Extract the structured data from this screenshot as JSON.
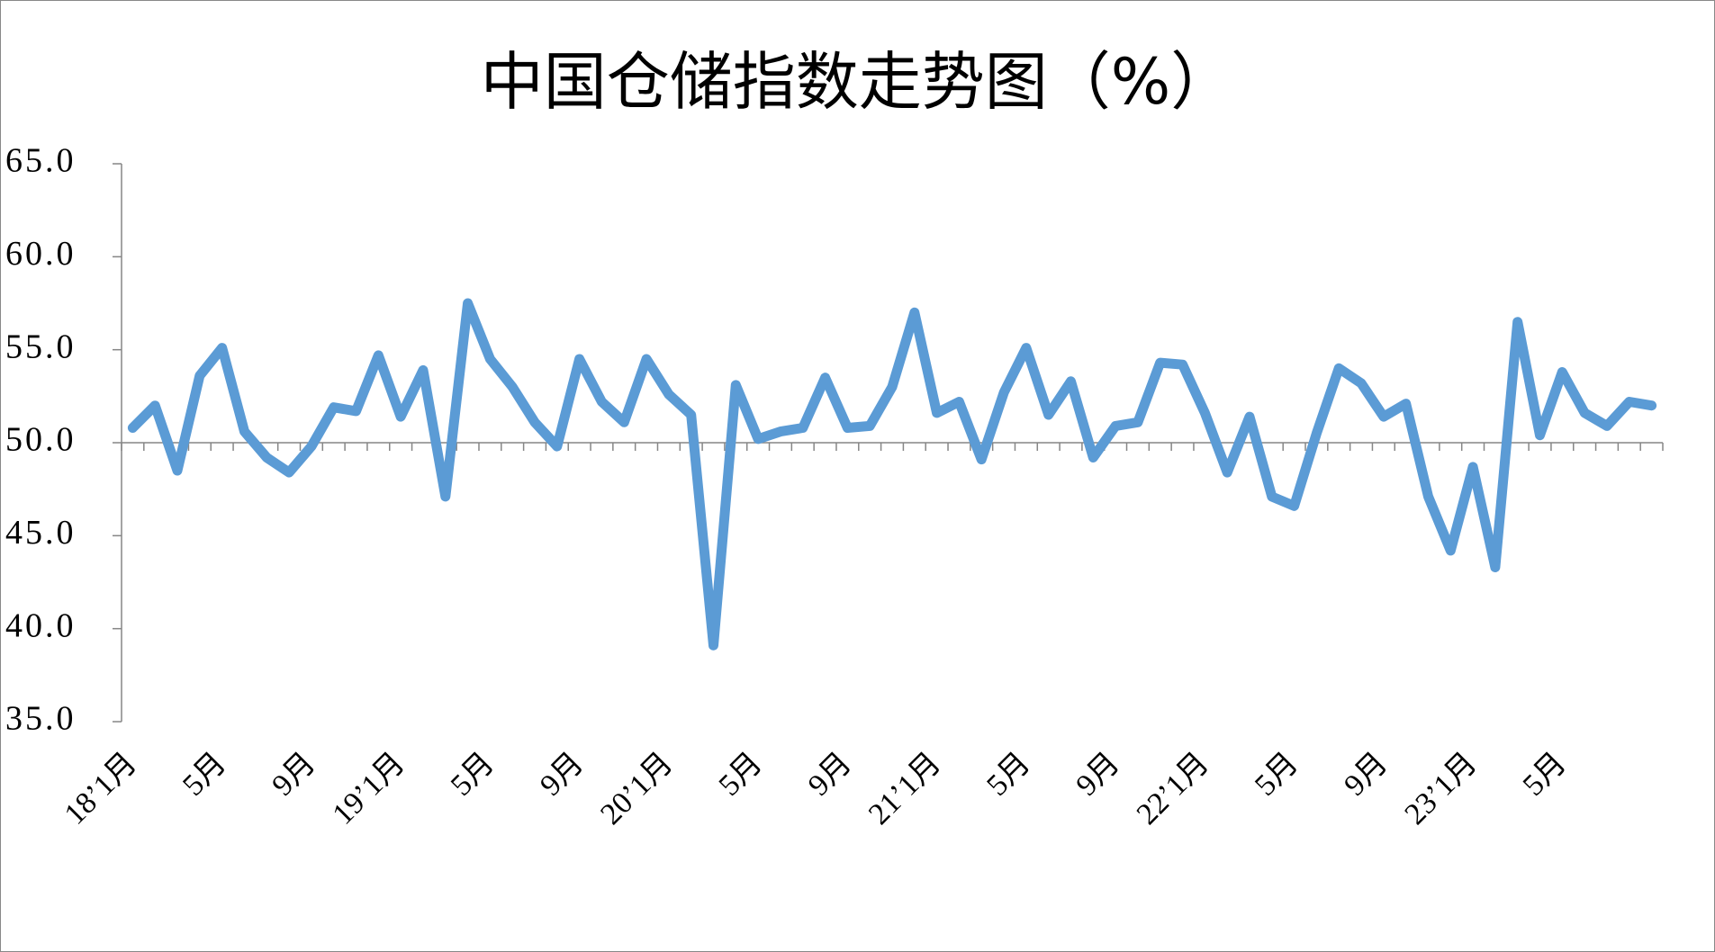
{
  "chart_data": {
    "type": "line",
    "title": "中国仓储指数走势图（%）",
    "categories": [
      "18’1月",
      null,
      null,
      null,
      "5月",
      null,
      null,
      null,
      "9月",
      null,
      null,
      null,
      "19’1月",
      null,
      null,
      null,
      "5月",
      null,
      null,
      null,
      "9月",
      null,
      null,
      null,
      "20’1月",
      null,
      null,
      null,
      "5月",
      null,
      null,
      null,
      "9月",
      null,
      null,
      null,
      "21’1月",
      null,
      null,
      null,
      "5月",
      null,
      null,
      null,
      "9月",
      null,
      null,
      null,
      "22’1月",
      null,
      null,
      null,
      "5月",
      null,
      null,
      null,
      "9月",
      null,
      null,
      null,
      "23’1月",
      null,
      null,
      null,
      "5月",
      null,
      null,
      null,
      null
    ],
    "series": [
      {
        "color": "#5b9bd5",
        "values": [
          50.8,
          52.0,
          48.5,
          53.6,
          55.1,
          50.6,
          49.2,
          48.4,
          49.8,
          51.9,
          51.7,
          54.7,
          51.4,
          53.9,
          47.1,
          57.5,
          54.5,
          53.0,
          51.1,
          49.8,
          54.5,
          52.2,
          51.1,
          54.5,
          52.6,
          51.5,
          39.1,
          53.1,
          50.2,
          50.6,
          50.8,
          53.5,
          50.8,
          50.9,
          53.0,
          57.0,
          51.6,
          52.2,
          49.1,
          52.7,
          55.1,
          51.5,
          53.3,
          49.2,
          50.9,
          51.1,
          54.3,
          54.2,
          51.6,
          48.4,
          51.4,
          47.1,
          46.6,
          50.5,
          54.0,
          53.2,
          51.4,
          52.1,
          47.1,
          44.2,
          48.7,
          43.3,
          56.5,
          50.4,
          53.8,
          51.6,
          50.9,
          52.2,
          52.0
        ]
      }
    ],
    "ylim": [
      35,
      65
    ],
    "yticks": [
      {
        "value": 35,
        "label": "35.0"
      },
      {
        "value": 40,
        "label": "40.0"
      },
      {
        "value": 45,
        "label": "45.0"
      },
      {
        "value": 50,
        "label": "50.0"
      },
      {
        "value": 55,
        "label": "55.0"
      },
      {
        "value": 60,
        "label": "60.0"
      },
      {
        "value": 65,
        "label": "65.0"
      }
    ],
    "x_axis_at": 50
  }
}
